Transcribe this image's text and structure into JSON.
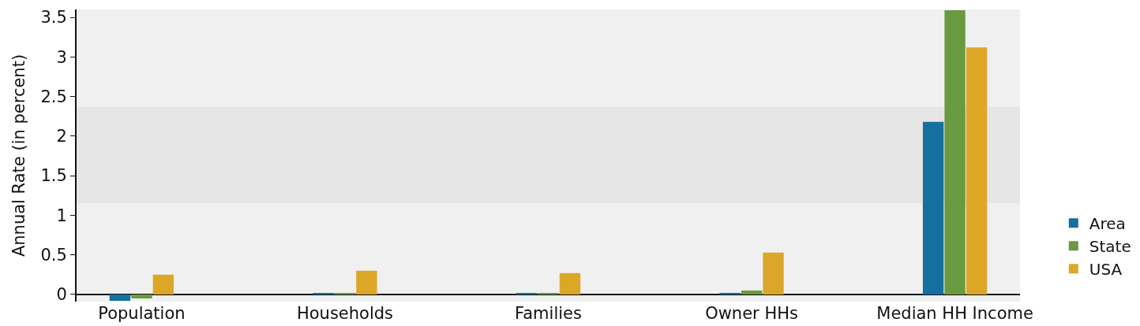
{
  "chart_data": {
    "type": "bar",
    "ylabel": "Annual Rate (in percent)",
    "categories": [
      "Population",
      "Households",
      "Families",
      "Owner HHs",
      "Median HH Income"
    ],
    "series": [
      {
        "name": "Area",
        "color": "#16709f",
        "values": [
          -0.08,
          0.01,
          0.01,
          0.02,
          2.18
        ]
      },
      {
        "name": "State",
        "color": "#6a9a40",
        "values": [
          -0.05,
          0.01,
          0.01,
          0.05,
          3.59
        ]
      },
      {
        "name": "USA",
        "color": "#dca728",
        "values": [
          0.25,
          0.3,
          0.27,
          0.53,
          3.12
        ]
      }
    ],
    "ylim": [
      -0.09,
      3.6
    ],
    "yticks": [
      0,
      0.5,
      1,
      1.5,
      2,
      2.5,
      3,
      3.5
    ],
    "bands": [
      {
        "axis": "y",
        "from": 1.15,
        "to": 2.37,
        "color": "#e6e6e6"
      }
    ],
    "legend": "bottom right"
  }
}
